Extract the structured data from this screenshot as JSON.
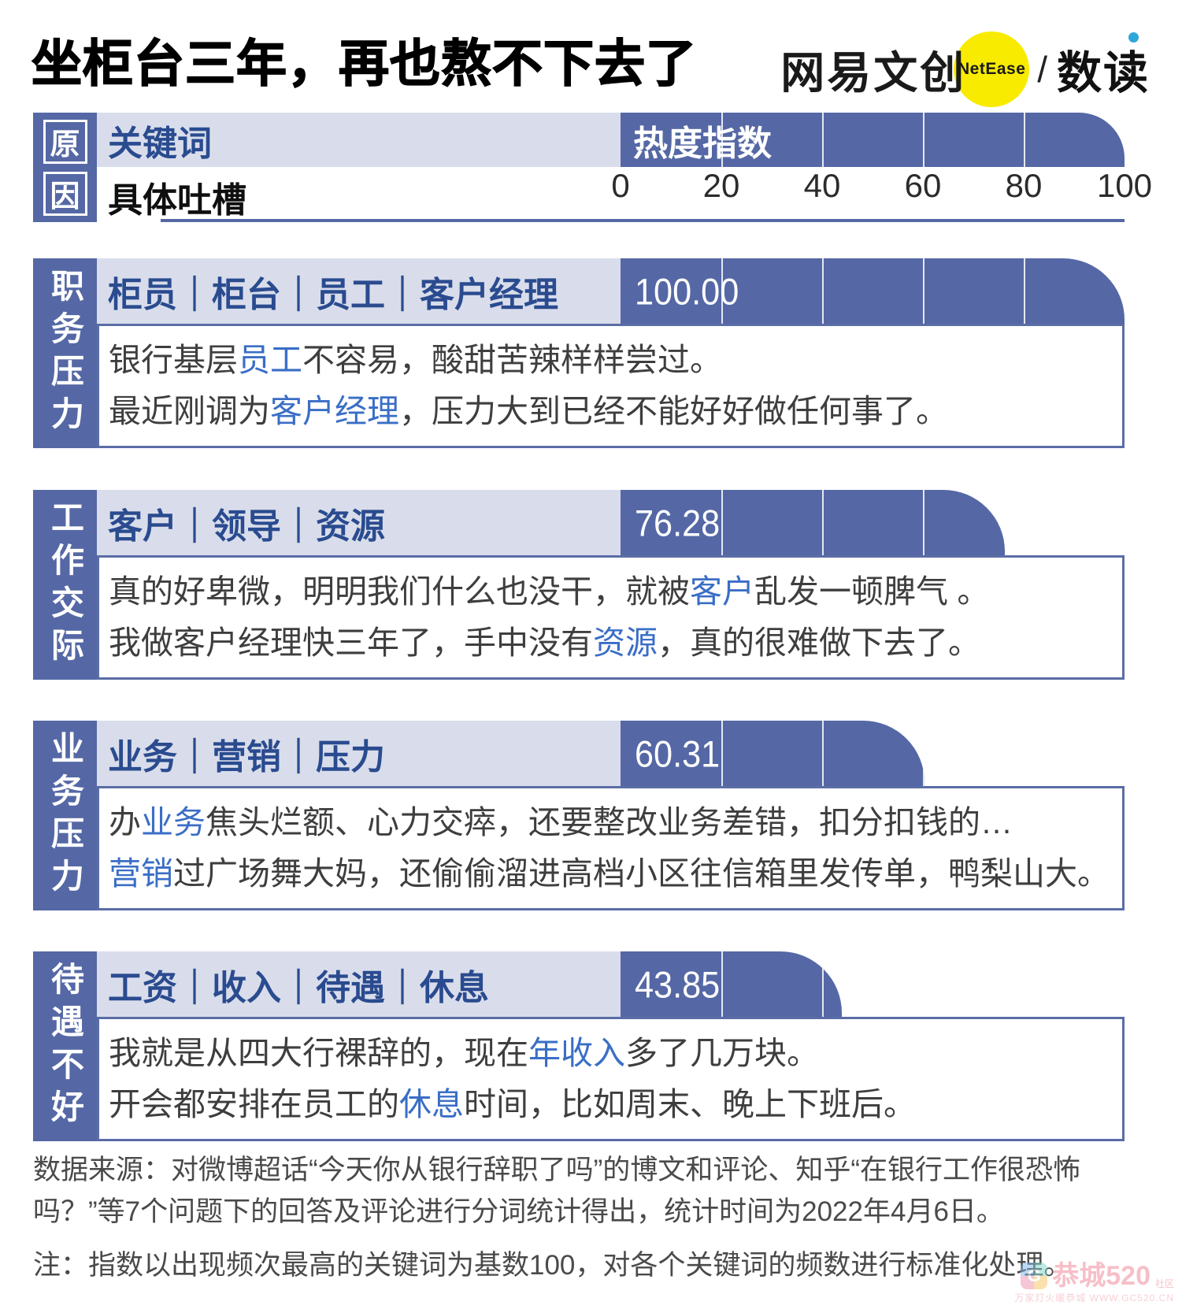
{
  "title": "坐柜台三年，再也熬不下去了",
  "logo": {
    "brand": "网易文创",
    "netease": "NetEase",
    "slash": "/",
    "product": "数读"
  },
  "colors": {
    "bar_blue": "#5568A5",
    "lavender": "#D9DDEB",
    "keyword_navy": "#2A4B8F",
    "highlight_blue": "#3A6EC6",
    "quote_text": "#3E3E3E",
    "netease_yellow": "#F8EB00",
    "shudu_dot_cyan": "#2FA6D8"
  },
  "legend": {
    "row_label_chars": [
      "原",
      "因"
    ],
    "keyword_header": "关键词",
    "index_header": "热度指数",
    "quote_header": "具体吐槽"
  },
  "axis": {
    "min": 0,
    "max": 100,
    "ticks": [
      0,
      20,
      40,
      60,
      80,
      100
    ]
  },
  "chart_data": {
    "type": "bar",
    "orientation": "horizontal",
    "title": "坐柜台三年，再也熬不下去了",
    "categories": [
      "职务压力",
      "工作交际",
      "业务压力",
      "待遇不好"
    ],
    "values": [
      100.0,
      76.28,
      60.31,
      43.85
    ],
    "series_label": "热度指数",
    "keywords": [
      "柜员｜柜台｜员工｜客户经理",
      "客户｜领导｜资源",
      "业务｜营销｜压力",
      "工资｜收入｜待遇｜休息"
    ],
    "xlim": [
      0,
      100
    ],
    "xticks": [
      0,
      20,
      40,
      60,
      80,
      100
    ],
    "grid": true,
    "legend_position": "none"
  },
  "sections": [
    {
      "category": "职务压力",
      "keywords": "柜员｜柜台｜员工｜客户经理",
      "value": 100.0,
      "value_label": "100.00",
      "quotes": [
        [
          {
            "t": "银行基层"
          },
          {
            "t": "员工",
            "h": true
          },
          {
            "t": "不容易，酸甜苦辣样样尝过。"
          }
        ],
        [
          {
            "t": "最近刚调为"
          },
          {
            "t": "客户经理",
            "h": true
          },
          {
            "t": "，压力大到已经不能好好做任何事了。"
          }
        ]
      ]
    },
    {
      "category": "工作交际",
      "keywords": "客户｜领导｜资源",
      "value": 76.28,
      "value_label": "76.28",
      "quotes": [
        [
          {
            "t": "真的好卑微，明明我们什么也没干，就被"
          },
          {
            "t": "客户",
            "h": true
          },
          {
            "t": "乱发一顿脾气 。"
          }
        ],
        [
          {
            "t": "我做客户经理快三年了，手中没有"
          },
          {
            "t": "资源",
            "h": true
          },
          {
            "t": "，真的很难做下去了。"
          }
        ]
      ]
    },
    {
      "category": "业务压力",
      "keywords": "业务｜营销｜压力",
      "value": 60.31,
      "value_label": "60.31",
      "quotes": [
        [
          {
            "t": "办"
          },
          {
            "t": "业务",
            "h": true
          },
          {
            "t": "焦头烂额、心力交瘁，还要整改业务差错，扣分扣钱的…"
          }
        ],
        [
          {
            "t": "营销",
            "h": true
          },
          {
            "t": "过广场舞大妈，还偷偷溜进高档小区往信箱里发传单，鸭梨山大。"
          }
        ]
      ]
    },
    {
      "category": "待遇不好",
      "keywords": "工资｜收入｜待遇｜休息",
      "value": 43.85,
      "value_label": "43.85",
      "quotes": [
        [
          {
            "t": "我就是从四大行裸辞的，现在"
          },
          {
            "t": "年收入",
            "h": true
          },
          {
            "t": "多了几万块。"
          }
        ],
        [
          {
            "t": "开会都安排在员工的"
          },
          {
            "t": "休息",
            "h": true
          },
          {
            "t": "时间，比如周末、晚上下班后。"
          }
        ]
      ]
    }
  ],
  "footer": {
    "source": "数据来源：对微博超话“今天你从银行辞职了吗”的博文和评论、知乎“在银行工作很恐怖吗？”等7个问题下的回答及评论进行分词统计得出，统计时间为2022年4月6日。",
    "note": "注：指数以出现频次最高的关键词为基数100，对各个关键词的频数进行标准化处理。"
  },
  "watermark": {
    "g": "G",
    "name": "恭城520",
    "suffix": "社区",
    "line2": "万家灯火暖恭城 WWW.GC520.CN"
  }
}
